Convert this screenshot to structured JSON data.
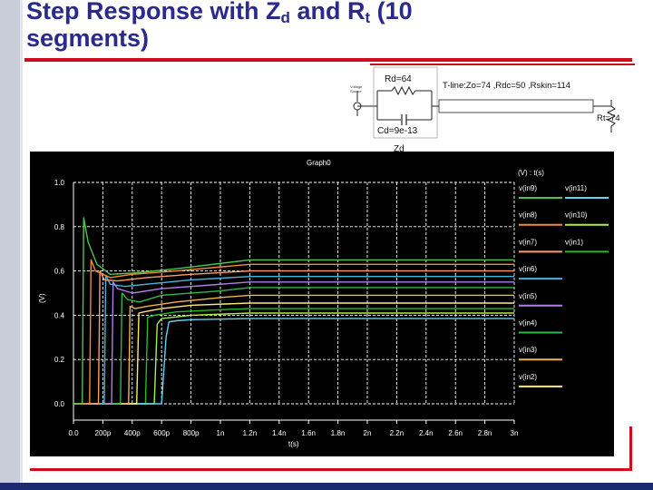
{
  "slide": {
    "title_part1": "Step Response with Z",
    "title_sub1": "d",
    "title_part2": " and R",
    "title_sub2": "t",
    "title_part3": " (10 segments)"
  },
  "circuit": {
    "source_label_line1": "Voltage",
    "source_label_line2": "Source",
    "rd_label": "Rd=64",
    "cd_label": "Cd=9e-13",
    "zd_label": "Zd",
    "tline_label": "T-line:Zo=74 ,Rdc=50 ,Rskin=114",
    "rt_label": "Rt=74"
  },
  "colors": {
    "v(in9)": "#4ec44e",
    "v(in8)": "#f28e2b",
    "v(in7)": "#ff9a6a",
    "v(in6)": "#47b5d9",
    "v(in5)": "#b07ee6",
    "v(in4)": "#2fb84a",
    "v(in3)": "#f0b64a",
    "v(in2)": "#ffea70",
    "v(in11)": "#5fd3f0",
    "v(in10)": "#a8f040",
    "v(in1)": "#22bb22"
  },
  "chart_data": {
    "type": "line",
    "title": "Graph0",
    "xlabel": "t(s)",
    "ylabel": "(V)",
    "legend_header": "(V) : t(s)",
    "legend_placement": "right",
    "grid": true,
    "xlim": [
      0,
      3e-09
    ],
    "ylim": [
      0,
      1.0
    ],
    "x_ticks": [
      "0.0",
      "200p",
      "400p",
      "600p",
      "800p",
      "1n",
      "1.2n",
      "1.4n",
      "1.6n",
      "1.8n",
      "2n",
      "2.2n",
      "2.4n",
      "2.6n",
      "2.8n",
      "3n"
    ],
    "y_ticks": [
      "0.0",
      "0.2",
      "0.4",
      "0.6",
      "0.8",
      "1.0"
    ],
    "series": [
      {
        "name": "v(in9)",
        "color": "#4ec44e",
        "points": [
          [
            0,
            0
          ],
          [
            6e-11,
            0
          ],
          [
            7e-11,
            0.84
          ],
          [
            1e-10,
            0.73
          ],
          [
            1.6e-10,
            0.63
          ],
          [
            2.5e-10,
            0.585
          ],
          [
            4e-10,
            0.59
          ],
          [
            7e-10,
            0.61
          ],
          [
            1.2e-09,
            0.65
          ],
          [
            3e-09,
            0.65
          ]
        ]
      },
      {
        "name": "v(in8)",
        "color": "#f28e2b",
        "points": [
          [
            0,
            0
          ],
          [
            1.1e-10,
            0
          ],
          [
            1.2e-10,
            0.65
          ],
          [
            1.5e-10,
            0.6
          ],
          [
            2.5e-10,
            0.57
          ],
          [
            4e-10,
            0.585
          ],
          [
            7e-10,
            0.6
          ],
          [
            1.2e-09,
            0.63
          ],
          [
            3e-09,
            0.63
          ]
        ]
      },
      {
        "name": "v(in7)",
        "color": "#ff9a6a",
        "points": [
          [
            0,
            0
          ],
          [
            1.7e-10,
            0
          ],
          [
            1.8e-10,
            0.6
          ],
          [
            2.1e-10,
            0.56
          ],
          [
            3e-10,
            0.555
          ],
          [
            5e-10,
            0.57
          ],
          [
            8e-10,
            0.585
          ],
          [
            1.2e-09,
            0.6
          ],
          [
            3e-09,
            0.6
          ]
        ]
      },
      {
        "name": "v(in6)",
        "color": "#47b5d9",
        "points": [
          [
            0,
            0
          ],
          [
            2.1e-10,
            0
          ],
          [
            2.2e-10,
            0.58
          ],
          [
            2.5e-10,
            0.54
          ],
          [
            3.5e-10,
            0.53
          ],
          [
            5e-10,
            0.54
          ],
          [
            8e-10,
            0.56
          ],
          [
            1.2e-09,
            0.575
          ],
          [
            3e-09,
            0.575
          ]
        ]
      },
      {
        "name": "v(in5)",
        "color": "#b07ee6",
        "points": [
          [
            0,
            0
          ],
          [
            2.6e-10,
            0
          ],
          [
            2.7e-10,
            0.55
          ],
          [
            3e-10,
            0.52
          ],
          [
            4e-10,
            0.5
          ],
          [
            6e-10,
            0.52
          ],
          [
            9e-10,
            0.535
          ],
          [
            1.2e-09,
            0.55
          ],
          [
            3e-09,
            0.55
          ]
        ]
      },
      {
        "name": "v(in4)",
        "color": "#2fb84a",
        "points": [
          [
            0,
            0
          ],
          [
            3.2e-10,
            0
          ],
          [
            3.3e-10,
            0.5
          ],
          [
            3.7e-10,
            0.47
          ],
          [
            4.5e-10,
            0.46
          ],
          [
            6e-10,
            0.49
          ],
          [
            1e-09,
            0.51
          ],
          [
            1.2e-09,
            0.525
          ],
          [
            3e-09,
            0.525
          ]
        ]
      },
      {
        "name": "v(in3)",
        "color": "#f0b64a",
        "points": [
          [
            0,
            0
          ],
          [
            3.75e-10,
            0
          ],
          [
            3.85e-10,
            0.44
          ],
          [
            4.2e-10,
            0.43
          ],
          [
            5e-10,
            0.44
          ],
          [
            7e-10,
            0.46
          ],
          [
            1e-09,
            0.48
          ],
          [
            1.2e-09,
            0.49
          ],
          [
            3e-09,
            0.49
          ]
        ]
      },
      {
        "name": "v(in2)",
        "color": "#ffea70",
        "points": [
          [
            0,
            0
          ],
          [
            4.3e-10,
            0
          ],
          [
            4.45e-10,
            0.41
          ],
          [
            4.8e-10,
            0.415
          ],
          [
            6e-10,
            0.43
          ],
          [
            8e-10,
            0.445
          ],
          [
            1.2e-09,
            0.455
          ],
          [
            3e-09,
            0.455
          ]
        ]
      },
      {
        "name": "v(in11)",
        "color": "#5fd3f0",
        "points": [
          [
            0,
            0
          ],
          [
            6e-10,
            0
          ],
          [
            6.3e-10,
            0.3
          ],
          [
            6.5e-10,
            0.37
          ],
          [
            7e-10,
            0.375
          ],
          [
            8e-10,
            0.38
          ],
          [
            1.2e-09,
            0.385
          ],
          [
            3e-09,
            0.385
          ]
        ]
      },
      {
        "name": "v(in10)",
        "color": "#a8f040",
        "points": [
          [
            0,
            0
          ],
          [
            5.5e-10,
            0
          ],
          [
            5.7e-10,
            0.36
          ],
          [
            6e-10,
            0.385
          ],
          [
            8e-10,
            0.4
          ],
          [
            1.2e-09,
            0.41
          ],
          [
            3e-09,
            0.41
          ]
        ]
      },
      {
        "name": "v(in1)",
        "color": "#22bb22",
        "points": [
          [
            0,
            0
          ],
          [
            4.9e-10,
            0
          ],
          [
            5.05e-10,
            0.39
          ],
          [
            5.5e-10,
            0.4
          ],
          [
            7e-10,
            0.415
          ],
          [
            1e-09,
            0.425
          ],
          [
            1.2e-09,
            0.43
          ],
          [
            3e-09,
            0.43
          ]
        ]
      }
    ]
  }
}
